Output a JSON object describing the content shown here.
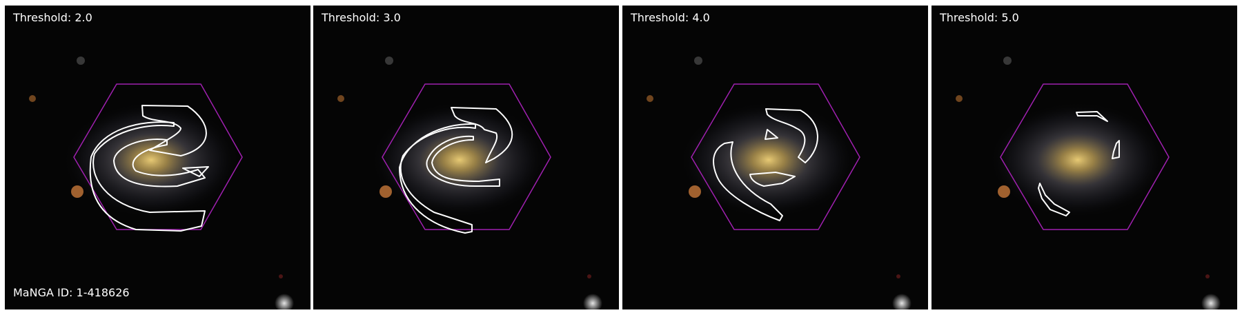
{
  "manga_id_label": "MaNGA ID: 1-418626",
  "colors": {
    "hexagon": "#a020b0",
    "contour": "#ffffff",
    "background": "#050505",
    "galaxy_core": "#d6b15a",
    "galaxy_arms": "#9a9aa8"
  },
  "panels": [
    {
      "threshold_label": "Threshold: 2.0",
      "threshold": 2.0
    },
    {
      "threshold_label": "Threshold: 3.0",
      "threshold": 3.0
    },
    {
      "threshold_label": "Threshold: 4.0",
      "threshold": 4.0
    },
    {
      "threshold_label": "Threshold: 5.0",
      "threshold": 5.0
    }
  ]
}
